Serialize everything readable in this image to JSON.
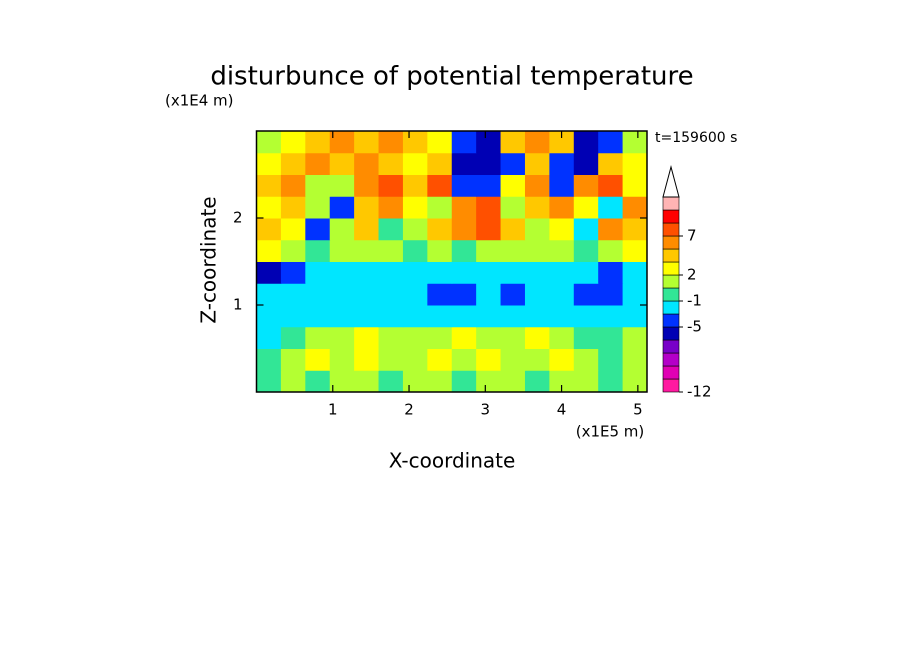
{
  "chart_data": {
    "type": "contour",
    "title": "disturbunce of potential temperature",
    "x_label": "X-coordinate",
    "y_label": "Z-coordinate",
    "x_unit": "(x1E5 m)",
    "y_unit": "(x1E4 m)",
    "annotation": "t=159600 s",
    "xlim": [
      0,
      5.12
    ],
    "ylim": [
      0,
      3
    ],
    "xticks": [
      1,
      2,
      3,
      4,
      5
    ],
    "yticks": [
      1,
      2
    ],
    "x": [
      0.16,
      0.48,
      0.8,
      1.12,
      1.44,
      1.76,
      2.08,
      2.4,
      2.72,
      3.04,
      3.36,
      3.68,
      4.0,
      4.32,
      4.64,
      4.96
    ],
    "y": [
      0.125,
      0.375,
      0.625,
      0.875,
      1.125,
      1.375,
      1.625,
      1.875,
      2.125,
      2.375,
      2.625,
      2.875
    ],
    "z": [
      [
        -0.5,
        1,
        -0.5,
        1,
        1,
        -0.5,
        1,
        1,
        -0.5,
        1,
        1,
        -0.5,
        1,
        1,
        -0.5,
        1
      ],
      [
        -0.5,
        1,
        2.5,
        1,
        2.5,
        1,
        1,
        2.5,
        1,
        2.5,
        1,
        1,
        2.5,
        1,
        -0.5,
        1
      ],
      [
        -2,
        -0.5,
        1,
        1,
        2.5,
        1,
        1,
        1,
        2.5,
        1,
        1,
        2.5,
        1,
        -0.5,
        -0.5,
        1
      ],
      [
        -2,
        -2,
        -2,
        -2,
        -2,
        -2,
        -2,
        -2,
        -2,
        -2,
        -2,
        -2,
        -2,
        -2,
        -2,
        -2
      ],
      [
        -2,
        -2,
        -2,
        -2,
        -2,
        -2,
        -2,
        -4,
        -4,
        -2,
        -4,
        -2,
        -2,
        -4,
        -4,
        -2
      ],
      [
        -5.5,
        -4,
        -2,
        -2,
        -2,
        -2,
        -2,
        -2,
        -2,
        -2,
        -2,
        -2,
        -2,
        -2,
        -4,
        -2
      ],
      [
        2.5,
        1,
        -0.5,
        1,
        1,
        1,
        -0.5,
        1,
        -0.5,
        1,
        1,
        1,
        1,
        -0.5,
        1,
        2.5
      ],
      [
        4,
        2.5,
        -4,
        1,
        4,
        -0.5,
        1,
        4,
        6,
        8,
        4,
        1,
        2.5,
        -2,
        6,
        4
      ],
      [
        2.5,
        4,
        1,
        -4,
        4,
        6,
        2.5,
        1,
        6,
        8,
        1,
        4,
        6,
        2.5,
        -2,
        6
      ],
      [
        4,
        6,
        1,
        1,
        6,
        8,
        4,
        8,
        -4,
        -4,
        2.5,
        6,
        -4,
        6,
        8,
        2.5
      ],
      [
        2.5,
        4,
        6,
        4,
        6,
        4,
        2.5,
        4,
        -5.5,
        -5.5,
        -4,
        4,
        -4,
        -5.5,
        4,
        2.5
      ],
      [
        1,
        2.5,
        4,
        6,
        4,
        6,
        4,
        2.5,
        -4,
        -5.5,
        4,
        6,
        4,
        -5.5,
        -4,
        1
      ]
    ],
    "levels": [
      -12,
      -10,
      -8,
      -7,
      -6,
      -5,
      -3,
      -1,
      0,
      2,
      3,
      5,
      7,
      9,
      11,
      13
    ],
    "level_colors": [
      "#ff1aa0",
      "#e000b4",
      "#b400c8",
      "#7800c8",
      "#0000b4",
      "#0032ff",
      "#00e6ff",
      "#32e696",
      "#b4ff32",
      "#ffff00",
      "#ffc800",
      "#ff8c00",
      "#ff5000",
      "#ff0000",
      "#ffb4b4"
    ],
    "extend_color": "#ffffff",
    "colorbar_ticks": [
      -12,
      -5,
      -1,
      2,
      7
    ]
  }
}
